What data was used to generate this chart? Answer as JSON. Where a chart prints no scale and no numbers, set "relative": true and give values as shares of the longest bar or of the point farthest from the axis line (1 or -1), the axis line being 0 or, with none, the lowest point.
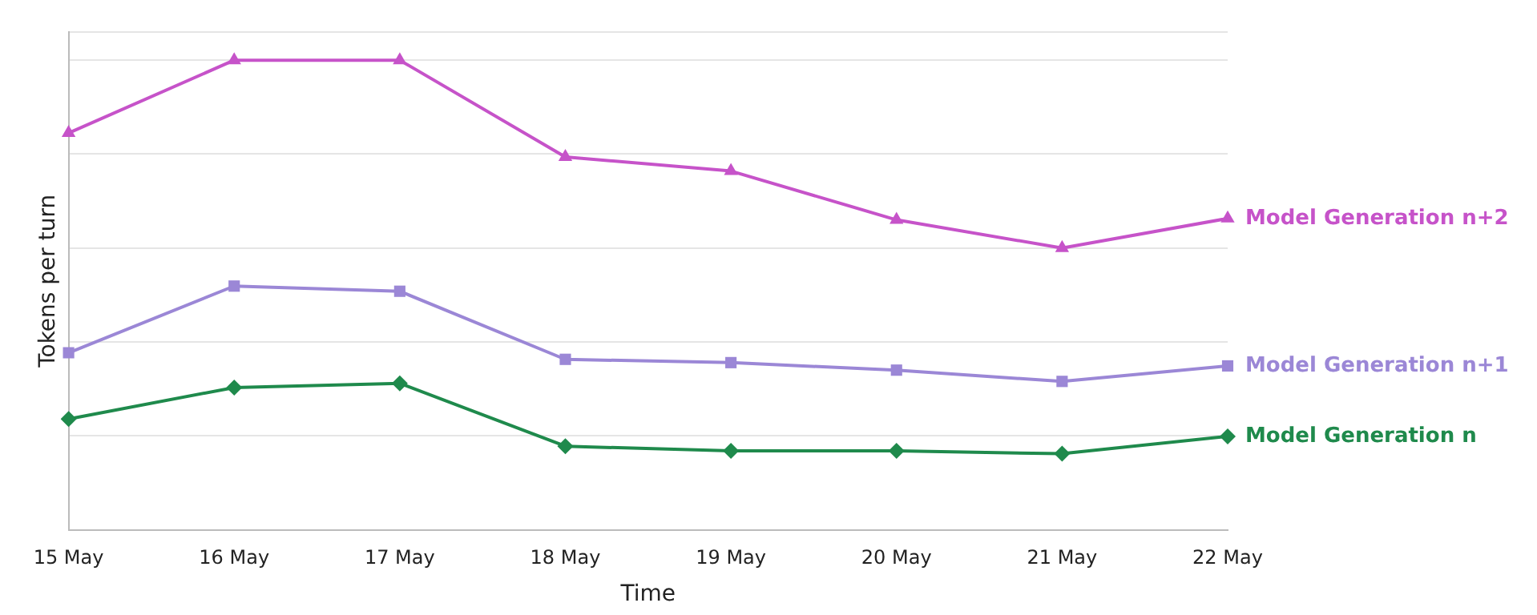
{
  "chart_data": {
    "type": "line",
    "relative": true,
    "xlabel": "Time",
    "ylabel": "Tokens per turn",
    "categories": [
      "15 May",
      "16 May",
      "17 May",
      "18 May",
      "19 May",
      "20 May",
      "21 May",
      "22 May"
    ],
    "grid": "y",
    "legend": false,
    "line_style": "solid",
    "series": [
      {
        "name": "Model Generation n+2",
        "color": "#c653c9",
        "marker": "triangle",
        "values": [
          0.845,
          1,
          1,
          0.794,
          0.764,
          0.66,
          0.6,
          0.663
        ]
      },
      {
        "name": "Model Generation n+1",
        "color": "#9b87d6",
        "marker": "square",
        "values": [
          0.377,
          0.519,
          0.508,
          0.363,
          0.356,
          0.34,
          0.316,
          0.349
        ]
      },
      {
        "name": "Model Generation n",
        "color": "#1f8a4c",
        "marker": "diamond",
        "values": [
          0.236,
          0.303,
          0.312,
          0.178,
          0.168,
          0.168,
          0.162,
          0.199
        ]
      }
    ]
  }
}
